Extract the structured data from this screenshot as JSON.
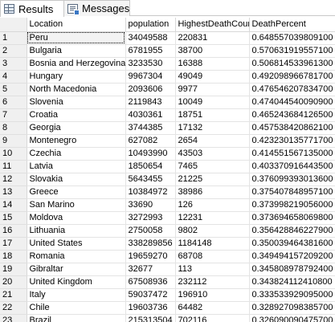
{
  "tabs": {
    "results": {
      "label": "Results",
      "icon": "grid-icon",
      "active": true
    },
    "messages": {
      "label": "Messages",
      "icon": "messages-icon",
      "active": false
    }
  },
  "table": {
    "columns": [
      "Location",
      "population",
      "HighestDeathCount",
      "DeathPercent"
    ],
    "rows": [
      {
        "num": "1",
        "cells": [
          "Peru",
          "34049588",
          "220831",
          "0.648557039809100"
        ]
      },
      {
        "num": "2",
        "cells": [
          "Bulgaria",
          "6781955",
          "38700",
          "0.570631919557100"
        ]
      },
      {
        "num": "3",
        "cells": [
          "Bosnia and Herzegovina",
          "3233530",
          "16388",
          "0.506814533961300"
        ]
      },
      {
        "num": "4",
        "cells": [
          "Hungary",
          "9967304",
          "49049",
          "0.492098966781700"
        ]
      },
      {
        "num": "5",
        "cells": [
          "North Macedonia",
          "2093606",
          "9977",
          "0.476546207834700"
        ]
      },
      {
        "num": "6",
        "cells": [
          "Slovenia",
          "2119843",
          "10049",
          "0.474044540090900"
        ]
      },
      {
        "num": "7",
        "cells": [
          "Croatia",
          "4030361",
          "18751",
          "0.465243684126500"
        ]
      },
      {
        "num": "8",
        "cells": [
          "Georgia",
          "3744385",
          "17132",
          "0.457538420862100"
        ]
      },
      {
        "num": "9",
        "cells": [
          "Montenegro",
          "627082",
          "2654",
          "0.423230135771700"
        ]
      },
      {
        "num": "10",
        "cells": [
          "Czechia",
          "10493990",
          "43503",
          "0.414551567135000"
        ]
      },
      {
        "num": "11",
        "cells": [
          "Latvia",
          "1850654",
          "7465",
          "0.403370916443500"
        ]
      },
      {
        "num": "12",
        "cells": [
          "Slovakia",
          "5643455",
          "21225",
          "0.376099393013600"
        ]
      },
      {
        "num": "13",
        "cells": [
          "Greece",
          "10384972",
          "38986",
          "0.375407848957100"
        ]
      },
      {
        "num": "14",
        "cells": [
          "San Marino",
          "33690",
          "126",
          "0.373998219056000"
        ]
      },
      {
        "num": "15",
        "cells": [
          "Moldova",
          "3272993",
          "12231",
          "0.373694658069800"
        ]
      },
      {
        "num": "16",
        "cells": [
          "Lithuania",
          "2750058",
          "9802",
          "0.356428846227900"
        ]
      },
      {
        "num": "17",
        "cells": [
          "United States",
          "338289856",
          "1184148",
          "0.350039464381600"
        ]
      },
      {
        "num": "18",
        "cells": [
          "Romania",
          "19659270",
          "68708",
          "0.349494157209200"
        ]
      },
      {
        "num": "19",
        "cells": [
          "Gibraltar",
          "32677",
          "113",
          "0.345808978792400"
        ]
      },
      {
        "num": "20",
        "cells": [
          "United Kingdom",
          "67508936",
          "232112",
          "0.343824112410800"
        ]
      },
      {
        "num": "21",
        "cells": [
          "Italy",
          "59037472",
          "196910",
          "0.333533929095000"
        ]
      },
      {
        "num": "22",
        "cells": [
          "Chile",
          "19603736",
          "64482",
          "0.328927098385700"
        ]
      },
      {
        "num": "23",
        "cells": [
          "Brazil",
          "215313504",
          "702116",
          "0.326090090475700"
        ]
      }
    ]
  }
}
